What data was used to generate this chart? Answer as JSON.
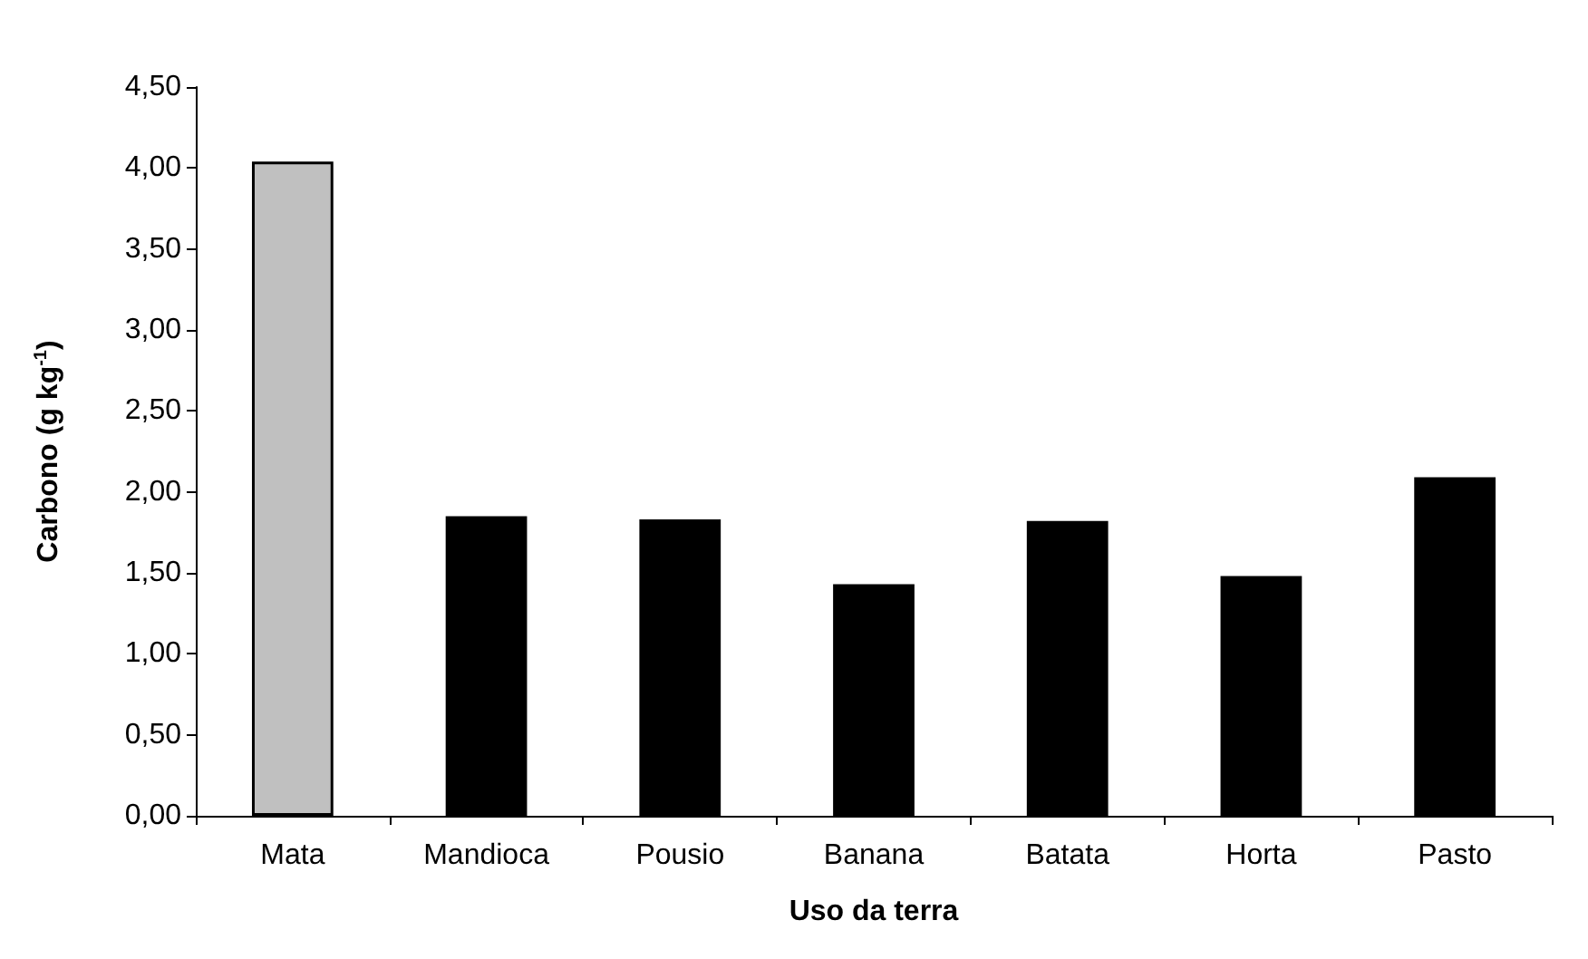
{
  "chart_data": {
    "type": "bar",
    "xlabel": "Uso da terra",
    "ylabel": "Carbono (g kg$^{-1}$)",
    "categories": [
      "Mata",
      "Mandioca",
      "Pousio",
      "Banana",
      "Batata",
      "Horta",
      "Pasto"
    ],
    "values": [
      4.04,
      1.85,
      1.83,
      1.43,
      1.82,
      1.48,
      2.09
    ],
    "colors": [
      "#c0c0c0",
      "#000000",
      "#000000",
      "#000000",
      "#000000",
      "#000000",
      "#000000"
    ],
    "ylim": [
      0,
      4.5
    ],
    "yticks": [
      {
        "value": 0,
        "label": "0,00"
      },
      {
        "value": 0.5,
        "label": "0,50"
      },
      {
        "value": 1,
        "label": "1,00"
      },
      {
        "value": 1.5,
        "label": "1,50"
      },
      {
        "value": 2,
        "label": "2,00"
      },
      {
        "value": 2.5,
        "label": "2,50"
      },
      {
        "value": 3,
        "label": "3,00"
      },
      {
        "value": 3.5,
        "label": "3,50"
      },
      {
        "value": 4,
        "label": "4,00"
      },
      {
        "value": 4.5,
        "label": "4,50"
      }
    ],
    "grid": false
  }
}
